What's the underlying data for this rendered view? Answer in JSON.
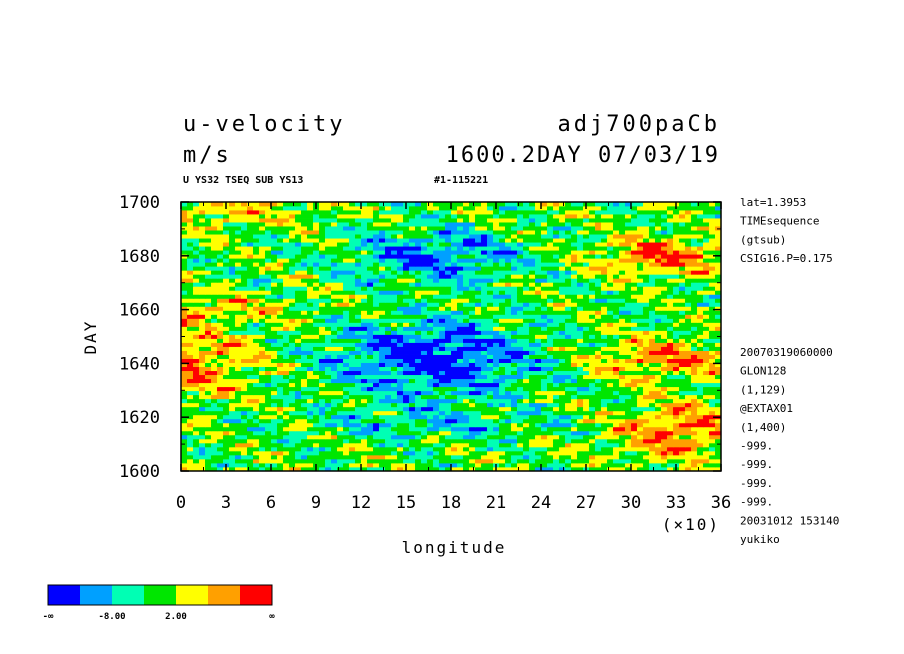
{
  "header": {
    "variable": "u-velocity",
    "experiment": "adj700paCb",
    "unit": "m/s",
    "time": "1600.2DAY 07/03/19",
    "subtitle": "U YS32 TSEQ SUB YS13",
    "run_id": "#1-115221"
  },
  "side_info": {
    "top": [
      "lat=1.3953",
      "TIMEsequence",
      "(gtsub)",
      "CSIG16.P=0.175"
    ],
    "bottom": [
      "20070319060000",
      "GLON128",
      "(1,129)",
      "@EXTAX01",
      "(1,400)",
      "-999.",
      "-999.",
      "-999.",
      "-999.",
      "20031012 153140",
      "yukiko"
    ]
  },
  "colorbar": {
    "colors": [
      "#0000ff",
      "#00a0ff",
      "#00ffb4",
      "#00e600",
      "#ffff00",
      "#ffa000",
      "#ff0000"
    ],
    "labels": [
      "-∞",
      "-8.00",
      "2.00",
      "∞"
    ]
  },
  "chart_data": {
    "type": "heatmap",
    "title": "u-velocity",
    "xlabel": "longitude",
    "ylabel": "DAY",
    "x_multiplier_label": "(×10)",
    "xlim": [
      0,
      36
    ],
    "ylim": [
      1600,
      1700
    ],
    "x_ticks": [
      "0",
      "3",
      "6",
      "9",
      "12",
      "15",
      "18",
      "21",
      "24",
      "27",
      "30",
      "33",
      "36"
    ],
    "y_ticks": [
      "1600",
      "1620",
      "1640",
      "1660",
      "1680",
      "1700"
    ],
    "zones": [
      {
        "day_range": [
          1600,
          1615
        ],
        "west": "yellow/green mix",
        "center": "green/cyan",
        "east": "red"
      },
      {
        "day_range": [
          1615,
          1630
        ],
        "west": "red",
        "center": "blue",
        "east": "red"
      },
      {
        "day_range": [
          1630,
          1650
        ],
        "west": "red",
        "center": "blue",
        "east": "red/orange"
      },
      {
        "day_range": [
          1650,
          1665
        ],
        "west": "red",
        "center": "cyan/green",
        "east": "green/yellow"
      },
      {
        "day_range": [
          1665,
          1685
        ],
        "west": "green/yellow",
        "center": "blue",
        "east": "red"
      },
      {
        "day_range": [
          1685,
          1700
        ],
        "west": "red/yellow",
        "center": "blue",
        "east": "yellow/green"
      }
    ]
  }
}
